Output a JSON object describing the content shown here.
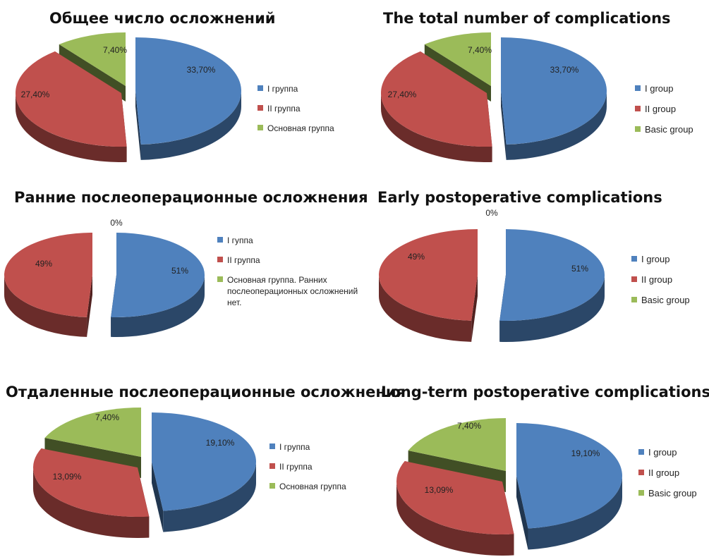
{
  "colors": {
    "group1": "#4f81bd",
    "group2": "#c0504d",
    "basic": "#9bbb59"
  },
  "chart_data": [
    {
      "type": "pie",
      "title": "Общее число осложнений",
      "legend": [
        "I группа",
        "II группа",
        "Основная группа"
      ],
      "slices": [
        {
          "label": "I группа",
          "value": 33.7,
          "display": "33,70%"
        },
        {
          "label": "II группа",
          "value": 27.4,
          "display": "27,40%"
        },
        {
          "label": "Основная группа",
          "value": 7.4,
          "display": "7,40%"
        }
      ]
    },
    {
      "type": "pie",
      "title": "The total number of complications",
      "legend": [
        "I group",
        "II group",
        "Basic group"
      ],
      "slices": [
        {
          "label": "I group",
          "value": 33.7,
          "display": "33,70%"
        },
        {
          "label": "II group",
          "value": 27.4,
          "display": "27,40%"
        },
        {
          "label": "Basic group",
          "value": 7.4,
          "display": "7,40%"
        }
      ]
    },
    {
      "type": "pie",
      "title": "Ранние послеоперационные осложнения",
      "legend": [
        "I гуппа",
        "II группа",
        "Основная группа. Ранних послеоперационных осложнений нет."
      ],
      "slices": [
        {
          "label": "I гуппа",
          "value": 51,
          "display": "51%"
        },
        {
          "label": "II группа",
          "value": 49,
          "display": "49%"
        },
        {
          "label": "Основная группа",
          "value": 0,
          "display": "0%"
        }
      ]
    },
    {
      "type": "pie",
      "title": "Early postoperative complications",
      "legend": [
        "I group",
        "II group",
        "Basic group"
      ],
      "slices": [
        {
          "label": "I group",
          "value": 51,
          "display": "51%"
        },
        {
          "label": "II group",
          "value": 49,
          "display": "49%"
        },
        {
          "label": "Basic group",
          "value": 0,
          "display": "0%"
        }
      ]
    },
    {
      "type": "pie",
      "title": "Отдаленные послеоперационные осложнения",
      "legend": [
        "I группа",
        "II группа",
        "Основная группа"
      ],
      "slices": [
        {
          "label": "I группа",
          "value": 19.1,
          "display": "19,10%"
        },
        {
          "label": "II группа",
          "value": 13.09,
          "display": "13,09%"
        },
        {
          "label": "Основная группа",
          "value": 7.4,
          "display": "7,40%"
        }
      ]
    },
    {
      "type": "pie",
      "title": "Long-term postoperative complications",
      "legend": [
        "I group",
        "II group",
        "Basic group"
      ],
      "slices": [
        {
          "label": "I group",
          "value": 19.1,
          "display": "19,10%"
        },
        {
          "label": "II group",
          "value": 13.09,
          "display": "13,09%"
        },
        {
          "label": "Basic group",
          "value": 7.4,
          "display": "7,40%"
        }
      ]
    }
  ]
}
